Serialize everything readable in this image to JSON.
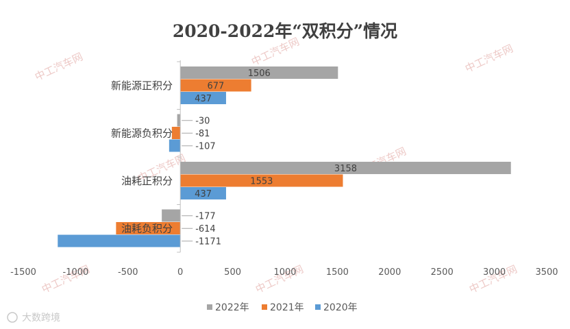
{
  "chart_data": {
    "type": "bar",
    "orientation": "horizontal",
    "title": "2020-2022年“双积分”情况",
    "categories": [
      "新能源正积分",
      "新能源负积分",
      "油耗正积分",
      "油耗负积分"
    ],
    "series": [
      {
        "name": "2022年",
        "values": [
          1506,
          -30,
          3158,
          -177
        ],
        "color": "#a5a5a5"
      },
      {
        "name": "2021年",
        "values": [
          677,
          -81,
          1553,
          -614
        ],
        "color": "#ed7d31"
      },
      {
        "name": "2020年",
        "values": [
          437,
          -107,
          437,
          -1171
        ],
        "color": "#5b9bd5"
      }
    ],
    "xlim": [
      -1500,
      3500
    ],
    "xticks": [
      -1500,
      -1000,
      -500,
      0,
      500,
      1000,
      1500,
      2000,
      2500,
      3000,
      3500
    ],
    "grid": false,
    "legend_position": "bottom"
  },
  "watermarks": [
    "中工汽车网",
    "大数跨境"
  ]
}
